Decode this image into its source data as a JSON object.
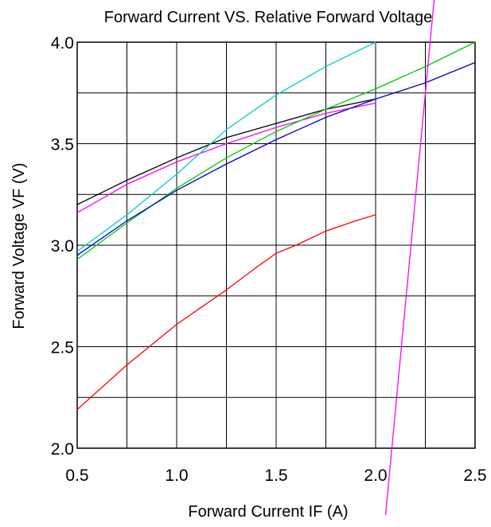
{
  "chart_data": {
    "type": "line",
    "title": "Forward Current VS.  Relative Forward Voltage",
    "xlabel": "Forward Current IF  (A)",
    "ylabel": "Forward  Voltage  VF  (V)",
    "xlim": [
      0.5,
      2.5
    ],
    "ylim": [
      2.0,
      4.0
    ],
    "x_ticks": [
      "0.5",
      "1.0",
      "1.5",
      "2.0",
      "2.5"
    ],
    "y_ticks": [
      "2.0",
      "2.5",
      "3.0",
      "3.5",
      "4.0"
    ],
    "grid": true,
    "legend": "none",
    "series": [
      {
        "color": "#000000",
        "points": [
          [
            0.5,
            3.2
          ],
          [
            0.75,
            3.32
          ],
          [
            1.0,
            3.43
          ],
          [
            1.25,
            3.53
          ],
          [
            1.5,
            3.6
          ],
          [
            1.75,
            3.67
          ],
          [
            2.0,
            3.72
          ]
        ]
      },
      {
        "color": "#ff00ff",
        "points": [
          [
            0.5,
            3.16
          ],
          [
            0.75,
            3.3
          ],
          [
            1.0,
            3.41
          ],
          [
            1.25,
            3.5
          ],
          [
            1.5,
            3.58
          ],
          [
            1.75,
            3.65
          ],
          [
            2.0,
            3.7
          ]
        ]
      },
      {
        "color": "#00cccc",
        "points": [
          [
            0.5,
            2.97
          ],
          [
            0.75,
            3.15
          ],
          [
            1.0,
            3.35
          ],
          [
            1.25,
            3.57
          ],
          [
            1.5,
            3.74
          ],
          [
            1.75,
            3.88
          ],
          [
            2.0,
            4.0
          ]
        ]
      },
      {
        "color": "#00cc00",
        "points": [
          [
            0.5,
            2.93
          ],
          [
            0.75,
            3.11
          ],
          [
            1.0,
            3.28
          ],
          [
            1.25,
            3.43
          ],
          [
            1.5,
            3.56
          ],
          [
            1.75,
            3.67
          ],
          [
            2.0,
            3.77
          ],
          [
            2.25,
            3.88
          ],
          [
            2.5,
            4.0
          ]
        ]
      },
      {
        "color": "#0000cc",
        "points": [
          [
            0.5,
            2.95
          ],
          [
            0.75,
            3.12
          ],
          [
            1.0,
            3.27
          ],
          [
            1.25,
            3.4
          ],
          [
            1.5,
            3.52
          ],
          [
            1.75,
            3.63
          ],
          [
            2.0,
            3.72
          ],
          [
            2.25,
            3.8
          ],
          [
            2.5,
            3.9
          ]
        ]
      },
      {
        "color": "#ff0000",
        "points": [
          [
            0.5,
            2.19
          ],
          [
            0.75,
            2.41
          ],
          [
            1.0,
            2.61
          ],
          [
            1.25,
            2.78
          ],
          [
            1.4,
            2.89
          ],
          [
            1.5,
            2.96
          ],
          [
            1.6,
            3.0
          ],
          [
            1.75,
            3.07
          ],
          [
            1.9,
            3.12
          ],
          [
            2.0,
            3.15
          ]
        ]
      }
    ],
    "overlay_line": {
      "color": "#ff00ff",
      "points": [
        [
          2.05,
          1.67
        ],
        [
          2.3,
          4.27
        ]
      ]
    }
  }
}
